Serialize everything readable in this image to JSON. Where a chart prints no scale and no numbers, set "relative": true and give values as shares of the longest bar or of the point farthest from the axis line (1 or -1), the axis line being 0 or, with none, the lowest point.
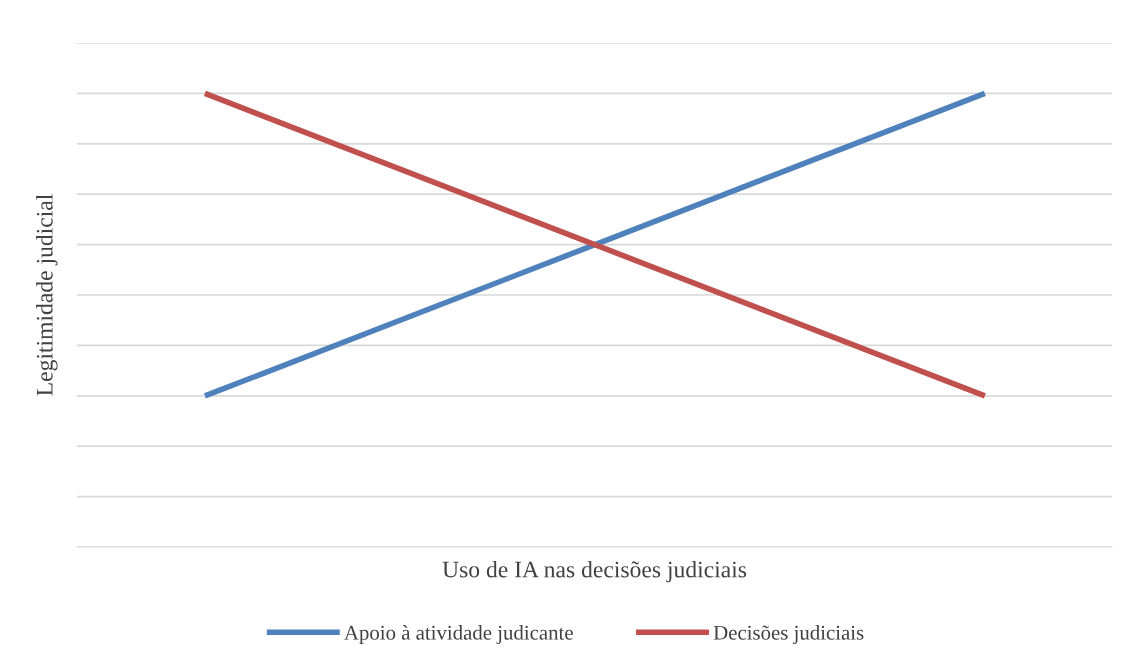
{
  "chart_data": {
    "type": "line",
    "relative": true,
    "xlabel": "Uso de IA nas decisões judiciais",
    "ylabel": "Legitimidade judicial",
    "categories": [
      null,
      null
    ],
    "series": [
      {
        "name": "Apoio à atividade judicante",
        "color": "#4f81bd",
        "values": [
          0.333,
          1
        ]
      },
      {
        "name": "Decisões judiciais",
        "color": "#c0504d",
        "values": [
          1,
          0.333
        ]
      }
    ],
    "grid": "y",
    "legend": "bottom",
    "tick_labels": false,
    "marker": "none",
    "line_style": "solid"
  }
}
